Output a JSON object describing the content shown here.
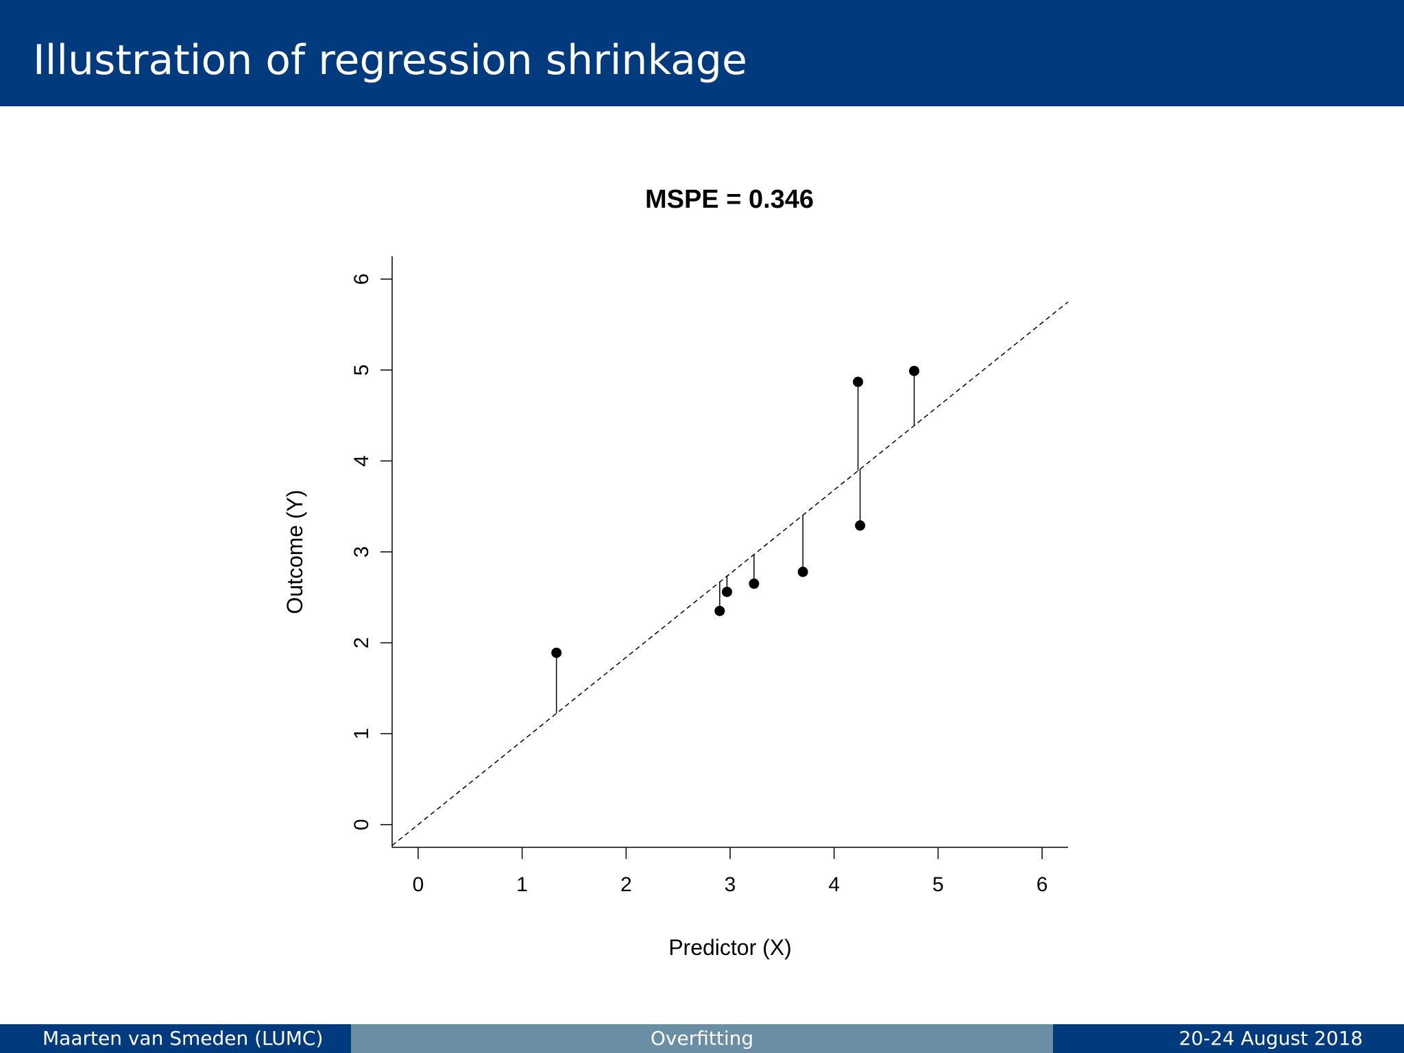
{
  "slide": {
    "title": "Illustration of regression shrinkage"
  },
  "footer": {
    "left": "Maarten van Smeden  (LUMC)",
    "center": "Overfitting",
    "right": "20-24 August 2018"
  },
  "colors": {
    "header_bg": "#023a7e",
    "footer_mid_bg": "#6a8fa5",
    "points": "#000000"
  },
  "chart_data": {
    "type": "scatter",
    "title": "MSPE =  0.346",
    "xlabel": "Predictor (X)",
    "ylabel": "Outcome (Y)",
    "xlim": [
      -0.25,
      6.25
    ],
    "ylim": [
      -0.25,
      6.25
    ],
    "xticks": [
      0,
      1,
      2,
      3,
      4,
      5,
      6
    ],
    "yticks": [
      0,
      1,
      2,
      3,
      4,
      5,
      6
    ],
    "grid": false,
    "regression_line": {
      "style": "dashed",
      "intercept": 0.0,
      "slope": 0.92
    },
    "residual_lines": true,
    "points": [
      {
        "x": 1.33,
        "y": 1.89
      },
      {
        "x": 2.9,
        "y": 2.35
      },
      {
        "x": 2.97,
        "y": 2.56
      },
      {
        "x": 3.23,
        "y": 2.65
      },
      {
        "x": 3.7,
        "y": 2.78
      },
      {
        "x": 4.23,
        "y": 4.87
      },
      {
        "x": 4.25,
        "y": 3.29
      },
      {
        "x": 4.77,
        "y": 4.99
      }
    ]
  }
}
